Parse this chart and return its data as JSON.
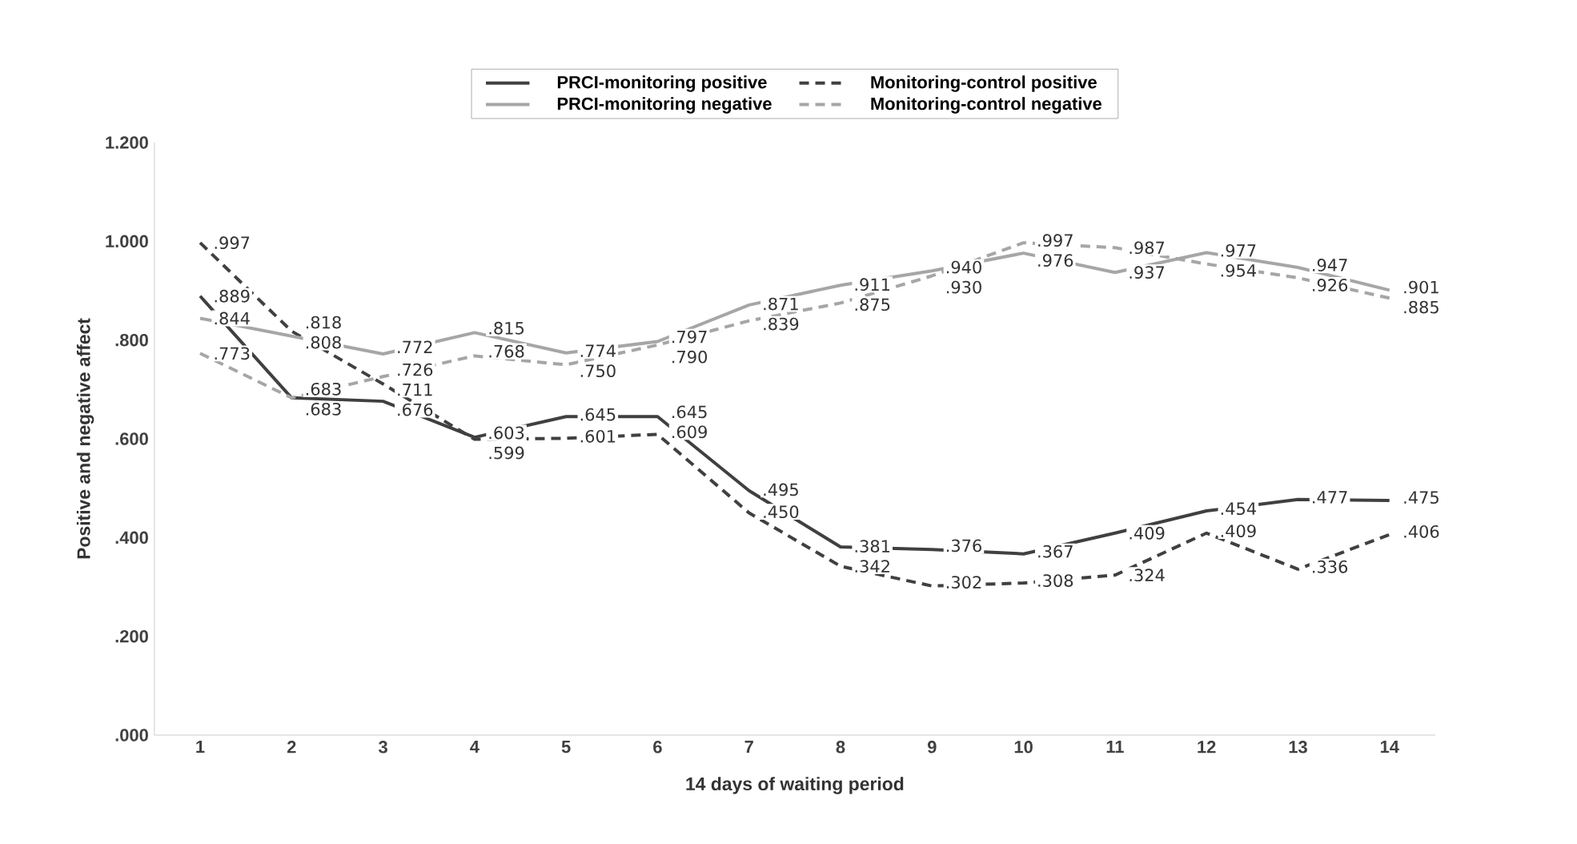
{
  "chart_data": {
    "type": "line",
    "xlabel": "14 days of waiting period",
    "ylabel": "Positive and negative affect",
    "categories": [
      "1",
      "2",
      "3",
      "4",
      "5",
      "6",
      "7",
      "8",
      "9",
      "10",
      "11",
      "12",
      "13",
      "14"
    ],
    "ylim": [
      0,
      1.2
    ],
    "yticks": [
      {
        "value": 0,
        "label": ".000"
      },
      {
        "value": 0.2,
        "label": ".200"
      },
      {
        "value": 0.4,
        "label": ".400"
      },
      {
        "value": 0.6,
        "label": ".600"
      },
      {
        "value": 0.8,
        "label": ".800"
      },
      {
        "value": 1.0,
        "label": "1.000"
      },
      {
        "value": 1.2,
        "label": "1.200"
      }
    ],
    "legend": "top",
    "grid": false,
    "marker": "none",
    "series": [
      {
        "name": "PRCI-monitoring positive",
        "color": "#404040",
        "line_style": "solid",
        "values": [
          0.889,
          0.683,
          0.676,
          0.603,
          0.645,
          0.645,
          0.495,
          0.381,
          0.376,
          0.367,
          0.409,
          0.454,
          0.477,
          0.475
        ],
        "value_labels": [
          ".889",
          ".683",
          ".676",
          ".603",
          ".645",
          ".645",
          ".495",
          ".381",
          ".376",
          ".367",
          ".409",
          ".454",
          ".477",
          ".475"
        ]
      },
      {
        "name": "Monitoring-control positive",
        "color": "#404040",
        "line_style": "dashed",
        "values": [
          0.997,
          0.818,
          0.711,
          0.599,
          0.601,
          0.609,
          0.45,
          0.342,
          0.302,
          0.308,
          0.324,
          0.409,
          0.336,
          0.406
        ],
        "value_labels": [
          ".997",
          ".818",
          ".711",
          ".599",
          ".601",
          ".609",
          ".450",
          ".342",
          ".302",
          ".308",
          ".324",
          ".409",
          ".336",
          ".406"
        ]
      },
      {
        "name": "PRCI-monitoring negative",
        "color": "#a6a6a6",
        "line_style": "solid",
        "values": [
          0.844,
          0.808,
          0.772,
          0.815,
          0.774,
          0.797,
          0.871,
          0.911,
          0.94,
          0.976,
          0.937,
          0.977,
          0.947,
          0.901
        ],
        "value_labels": [
          ".844",
          ".808",
          ".772",
          ".815",
          ".774",
          ".797",
          ".871",
          ".911",
          ".940",
          ".976",
          ".937",
          ".977",
          ".947",
          ".901"
        ]
      },
      {
        "name": "Monitoring-control negative",
        "color": "#a6a6a6",
        "line_style": "dashed",
        "values": [
          0.773,
          0.683,
          0.726,
          0.768,
          0.75,
          0.79,
          0.839,
          0.875,
          0.93,
          0.997,
          0.987,
          0.954,
          0.926,
          0.885
        ],
        "value_labels": [
          ".773",
          ".683",
          ".726",
          ".768",
          ".750",
          ".790",
          ".839",
          ".875",
          ".930",
          ".997",
          ".987",
          ".954",
          ".926",
          ".885"
        ]
      }
    ]
  }
}
